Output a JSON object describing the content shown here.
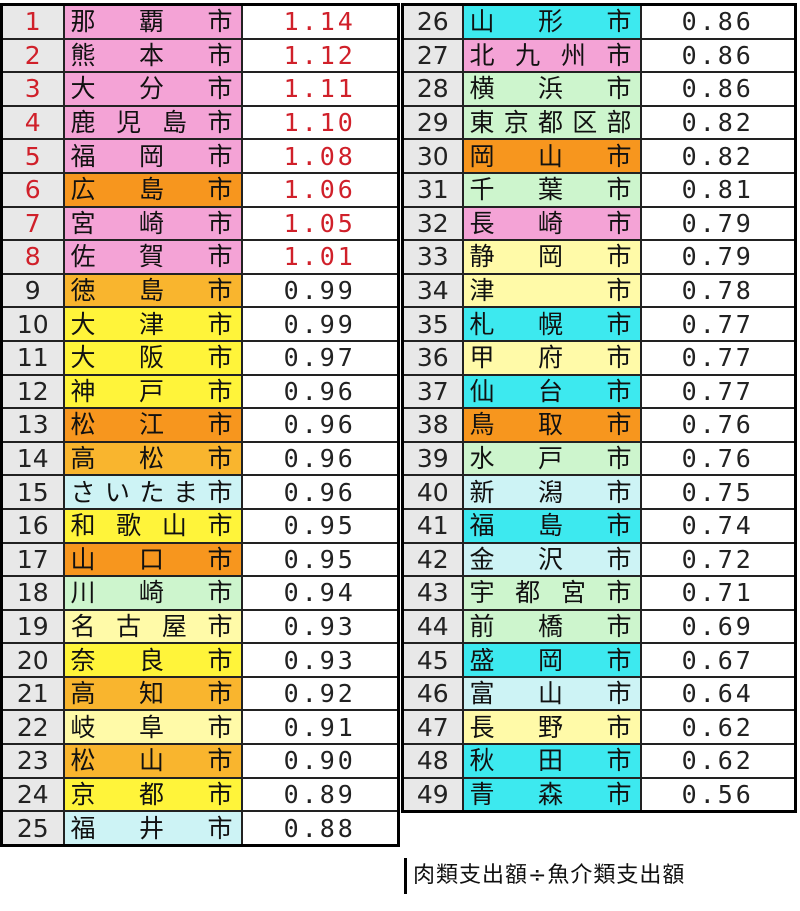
{
  "colors": {
    "pink": "#f4a3d6",
    "orange": "#f7961e",
    "amber": "#f9b52e",
    "yellow": "#fff43a",
    "pale_yellow": "#fffaa8",
    "pale_green": "#cdf5cd",
    "pale_cyan": "#cdf3f5",
    "cyan": "#3de9ef",
    "highlight_text": "#d0202a"
  },
  "rows": [
    {
      "rank": "1",
      "city": "那覇市",
      "value": "1.14",
      "color": "pink",
      "highlight": true
    },
    {
      "rank": "2",
      "city": "熊本市",
      "value": "1.12",
      "color": "pink",
      "highlight": true
    },
    {
      "rank": "3",
      "city": "大分市",
      "value": "1.11",
      "color": "pink",
      "highlight": true
    },
    {
      "rank": "4",
      "city": "鹿児島市",
      "value": "1.10",
      "color": "pink",
      "highlight": true
    },
    {
      "rank": "5",
      "city": "福岡市",
      "value": "1.08",
      "color": "pink",
      "highlight": true
    },
    {
      "rank": "6",
      "city": "広島市",
      "value": "1.06",
      "color": "orange",
      "highlight": true
    },
    {
      "rank": "7",
      "city": "宮崎市",
      "value": "1.05",
      "color": "pink",
      "highlight": true
    },
    {
      "rank": "8",
      "city": "佐賀市",
      "value": "1.01",
      "color": "pink",
      "highlight": true
    },
    {
      "rank": "9",
      "city": "徳島市",
      "value": "0.99",
      "color": "amber"
    },
    {
      "rank": "10",
      "city": "大津市",
      "value": "0.99",
      "color": "yellow"
    },
    {
      "rank": "11",
      "city": "大阪市",
      "value": "0.97",
      "color": "yellow"
    },
    {
      "rank": "12",
      "city": "神戸市",
      "value": "0.96",
      "color": "yellow"
    },
    {
      "rank": "13",
      "city": "松江市",
      "value": "0.96",
      "color": "orange"
    },
    {
      "rank": "14",
      "city": "高松市",
      "value": "0.96",
      "color": "amber"
    },
    {
      "rank": "15",
      "city": "さいたま市",
      "value": "0.96",
      "color": "pale_cyan"
    },
    {
      "rank": "16",
      "city": "和歌山市",
      "value": "0.95",
      "color": "yellow"
    },
    {
      "rank": "17",
      "city": "山口市",
      "value": "0.95",
      "color": "orange"
    },
    {
      "rank": "18",
      "city": "川崎市",
      "value": "0.94",
      "color": "pale_green"
    },
    {
      "rank": "19",
      "city": "名古屋市",
      "value": "0.93",
      "color": "pale_yellow"
    },
    {
      "rank": "20",
      "city": "奈良市",
      "value": "0.93",
      "color": "yellow"
    },
    {
      "rank": "21",
      "city": "高知市",
      "value": "0.92",
      "color": "amber"
    },
    {
      "rank": "22",
      "city": "岐阜市",
      "value": "0.91",
      "color": "pale_yellow"
    },
    {
      "rank": "23",
      "city": "松山市",
      "value": "0.90",
      "color": "amber"
    },
    {
      "rank": "24",
      "city": "京都市",
      "value": "0.89",
      "color": "yellow"
    },
    {
      "rank": "25",
      "city": "福井市",
      "value": "0.88",
      "color": "pale_cyan"
    },
    {
      "rank": "26",
      "city": "山形市",
      "value": "0.86",
      "color": "cyan"
    },
    {
      "rank": "27",
      "city": "北九州市",
      "value": "0.86",
      "color": "pink"
    },
    {
      "rank": "28",
      "city": "横浜市",
      "value": "0.86",
      "color": "pale_green"
    },
    {
      "rank": "29",
      "city": "東京都区部",
      "value": "0.82",
      "color": "pale_green"
    },
    {
      "rank": "30",
      "city": "岡山市",
      "value": "0.82",
      "color": "orange"
    },
    {
      "rank": "31",
      "city": "千葉市",
      "value": "0.81",
      "color": "pale_green"
    },
    {
      "rank": "32",
      "city": "長崎市",
      "value": "0.79",
      "color": "pink"
    },
    {
      "rank": "33",
      "city": "静岡市",
      "value": "0.79",
      "color": "pale_yellow"
    },
    {
      "rank": "34",
      "city": "津　市",
      "value": "0.78",
      "color": "pale_yellow"
    },
    {
      "rank": "35",
      "city": "札幌市",
      "value": "0.77",
      "color": "cyan"
    },
    {
      "rank": "36",
      "city": "甲府市",
      "value": "0.77",
      "color": "pale_yellow"
    },
    {
      "rank": "37",
      "city": "仙台市",
      "value": "0.77",
      "color": "cyan"
    },
    {
      "rank": "38",
      "city": "鳥取市",
      "value": "0.76",
      "color": "orange"
    },
    {
      "rank": "39",
      "city": "水戸市",
      "value": "0.76",
      "color": "pale_green"
    },
    {
      "rank": "40",
      "city": "新潟市",
      "value": "0.75",
      "color": "pale_cyan"
    },
    {
      "rank": "41",
      "city": "福島市",
      "value": "0.74",
      "color": "cyan"
    },
    {
      "rank": "42",
      "city": "金沢市",
      "value": "0.72",
      "color": "pale_cyan"
    },
    {
      "rank": "43",
      "city": "宇都宮市",
      "value": "0.71",
      "color": "pale_green"
    },
    {
      "rank": "44",
      "city": "前橋市",
      "value": "0.69",
      "color": "pale_green"
    },
    {
      "rank": "45",
      "city": "盛岡市",
      "value": "0.67",
      "color": "cyan"
    },
    {
      "rank": "46",
      "city": "富山市",
      "value": "0.64",
      "color": "pale_cyan"
    },
    {
      "rank": "47",
      "city": "長野市",
      "value": "0.62",
      "color": "pale_yellow"
    },
    {
      "rank": "48",
      "city": "秋田市",
      "value": "0.62",
      "color": "cyan"
    },
    {
      "rank": "49",
      "city": "青森市",
      "value": "0.56",
      "color": "cyan"
    }
  ],
  "footnote": "肉類支出額÷魚介類支出額"
}
